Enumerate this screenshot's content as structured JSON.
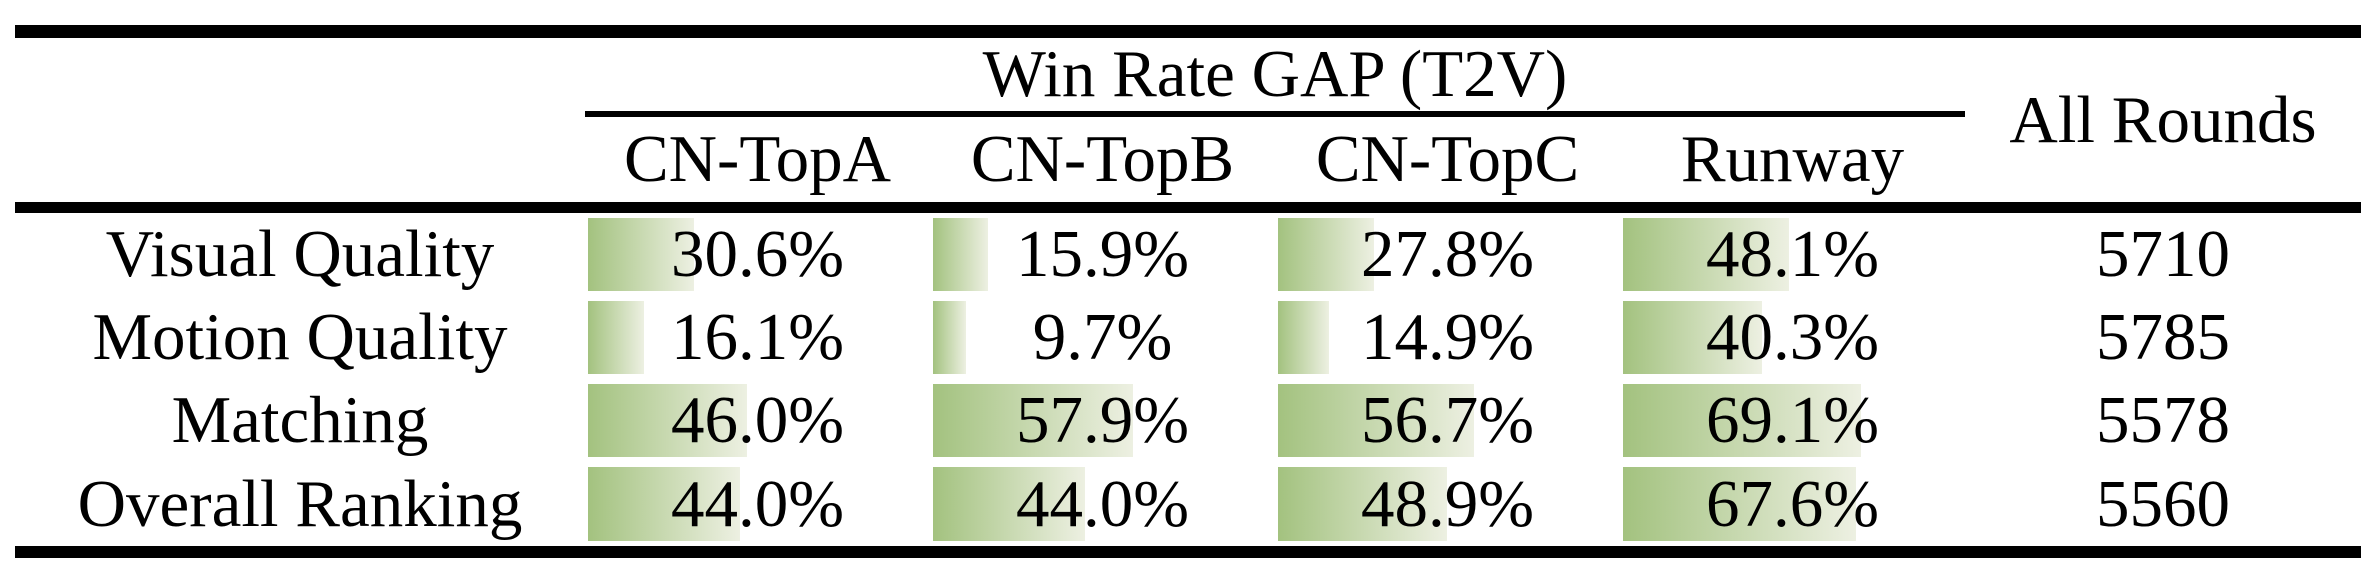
{
  "table": {
    "header": {
      "group_title": "Win Rate GAP (T2V)",
      "columns": [
        "CN-TopA",
        "CN-TopB",
        "CN-TopC",
        "Runway"
      ],
      "all_rounds_label": "All Rounds"
    },
    "rows": [
      {
        "label": "Visual Quality",
        "cells": [
          {
            "text": "30.6%",
            "value": 30.6
          },
          {
            "text": "15.9%",
            "value": 15.9
          },
          {
            "text": "27.8%",
            "value": 27.8
          },
          {
            "text": "48.1%",
            "value": 48.1
          }
        ],
        "all_rounds": "5710"
      },
      {
        "label": "Motion Quality",
        "cells": [
          {
            "text": "16.1%",
            "value": 16.1
          },
          {
            "text": "9.7%",
            "value": 9.7
          },
          {
            "text": "14.9%",
            "value": 14.9
          },
          {
            "text": "40.3%",
            "value": 40.3
          }
        ],
        "all_rounds": "5785"
      },
      {
        "label": "Matching",
        "cells": [
          {
            "text": "46.0%",
            "value": 46.0
          },
          {
            "text": "57.9%",
            "value": 57.9
          },
          {
            "text": "56.7%",
            "value": 56.7
          },
          {
            "text": "69.1%",
            "value": 69.1
          }
        ],
        "all_rounds": "5578"
      },
      {
        "label": "Overall Ranking",
        "cells": [
          {
            "text": "44.0%",
            "value": 44.0
          },
          {
            "text": "44.0%",
            "value": 44.0
          },
          {
            "text": "48.9%",
            "value": 48.9
          },
          {
            "text": "67.6%",
            "value": 67.6
          }
        ],
        "all_rounds": "5560"
      }
    ]
  },
  "colors": {
    "bar_gradient_start": "#a3c27f",
    "bar_gradient_end": "#edf0e2",
    "rule_color": "#000000",
    "text_color": "#000000",
    "background": "#ffffff"
  },
  "chart_data": {
    "type": "table",
    "title": "Win Rate GAP (T2V)",
    "categories": [
      "Visual Quality",
      "Motion Quality",
      "Matching",
      "Overall Ranking"
    ],
    "series": [
      {
        "name": "CN-TopA",
        "values": [
          30.6,
          16.1,
          46.0,
          44.0
        ]
      },
      {
        "name": "CN-TopB",
        "values": [
          15.9,
          9.7,
          57.9,
          44.0
        ]
      },
      {
        "name": "CN-TopC",
        "values": [
          27.8,
          14.9,
          56.7,
          48.9
        ]
      },
      {
        "name": "Runway",
        "values": [
          48.1,
          40.3,
          69.1,
          67.6
        ]
      }
    ],
    "all_rounds": [
      5710,
      5785,
      5578,
      5560
    ],
    "value_unit": "%",
    "bar_scale": [
      0,
      100
    ],
    "note": "in-cell horizontal bars, width proportional to win-rate percentage"
  }
}
